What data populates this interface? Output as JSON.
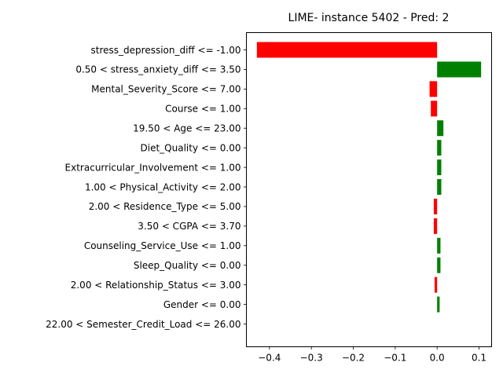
{
  "chart_data": {
    "type": "bar",
    "orientation": "horizontal",
    "title": "LIME- instance 5402 - Pred: 2",
    "xlabel": "",
    "ylabel": "",
    "xlim": [
      -0.455,
      0.13
    ],
    "xticks": [
      -0.4,
      -0.3,
      -0.2,
      -0.1,
      0.0,
      0.1
    ],
    "xtick_labels": [
      "−0.4",
      "−0.3",
      "−0.2",
      "−0.1",
      "0.0",
      "0.1"
    ],
    "grid": false,
    "colors": {
      "positive": "#008000",
      "negative": "#ff0000"
    },
    "categories": [
      "stress_depression_diff <= -1.00",
      "0.50 < stress_anxiety_diff <= 3.50",
      "Mental_Severity_Score <= 7.00",
      "Course <= 1.00",
      "19.50 < Age <= 23.00",
      "Diet_Quality <= 0.00",
      "Extracurricular_Involvement <= 1.00",
      "1.00 < Physical_Activity <= 2.00",
      "2.00 < Residence_Type <= 5.00",
      "3.50 < CGPA <= 3.70",
      "Counseling_Service_Use <= 1.00",
      "Sleep_Quality <= 0.00",
      "2.00 < Relationship_Status <= 3.00",
      "Gender <= 0.00",
      "22.00 < Semester_Credit_Load <= 26.00"
    ],
    "values": [
      -0.43,
      0.105,
      -0.018,
      -0.015,
      0.015,
      0.01,
      0.01,
      0.01,
      -0.008,
      -0.008,
      0.008,
      0.008,
      -0.006,
      0.006,
      0.0
    ]
  }
}
